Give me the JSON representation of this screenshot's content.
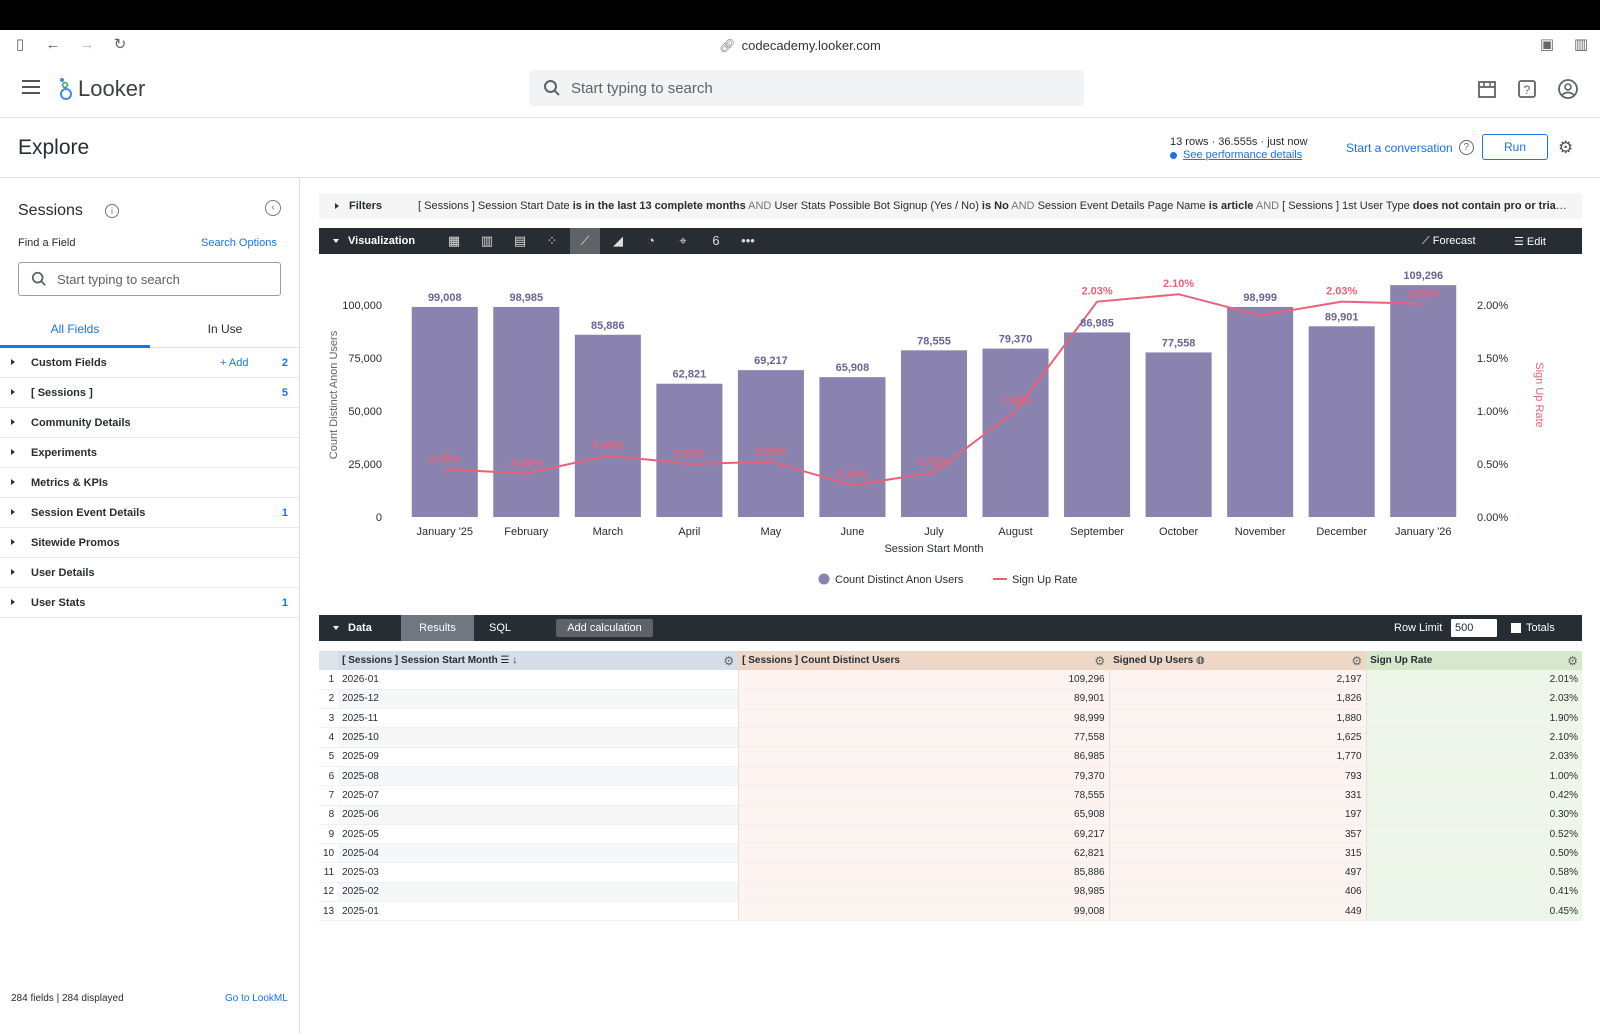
{
  "browser": {
    "url": "codecademy.looker.com"
  },
  "app": {
    "name": "Looker",
    "search_placeholder": "Start typing to search"
  },
  "explore": {
    "title": "Explore",
    "meta": "13 rows · 36.555s · just now",
    "perf_link": "See performance details",
    "conversation": "Start a conversation",
    "run": "Run"
  },
  "sidebar": {
    "title": "Sessions",
    "find": "Find a Field",
    "search_options": "Search Options",
    "search_placeholder": "Start typing to search",
    "tabs": [
      "All Fields",
      "In Use"
    ],
    "items": [
      {
        "label": "Custom Fields",
        "add": "+ Add",
        "count": "2"
      },
      {
        "label": "[ Sessions ]",
        "count": "5"
      },
      {
        "label": "Community Details",
        "count": ""
      },
      {
        "label": "Experiments",
        "count": ""
      },
      {
        "label": "Metrics & KPIs",
        "count": ""
      },
      {
        "label": "Session Event Details",
        "count": "1"
      },
      {
        "label": "Sitewide Promos",
        "count": ""
      },
      {
        "label": "User Details",
        "count": ""
      },
      {
        "label": "User Stats",
        "count": "1"
      }
    ],
    "footer": "284 fields | 284 displayed",
    "footer_link": "Go to LookML"
  },
  "filters": {
    "label": "Filters",
    "parts": [
      {
        "t": "[ Sessions ] Session Start Date ",
        "b": "is in the last 13 complete months"
      },
      {
        "and": " AND "
      },
      {
        "t": "User Stats Possible Bot Signup (Yes / No) ",
        "b": "is No"
      },
      {
        "and": " AND "
      },
      {
        "t": "Session Event Details Page Name ",
        "b": "is article"
      },
      {
        "and": " AND "
      },
      {
        "t": "[ Sessions ] 1st User Type ",
        "b": "does not contain pro or trial or e..."
      }
    ]
  },
  "visualization": {
    "label": "Visualization",
    "forecast": "Forecast",
    "edit": "Edit",
    "icons": [
      "table-icon",
      "column-chart-icon",
      "bar-chart-icon",
      "scatter-icon",
      "line-chart-icon",
      "area-chart-icon",
      "pie-chart-icon",
      "map-pin-icon",
      "single-value-icon",
      "more-icon"
    ],
    "icon_glyphs": [
      "▦",
      "▥",
      "▤",
      "⁘",
      "⟋",
      "◢",
      "◔",
      "⌖",
      "6",
      "•••"
    ]
  },
  "chart_data": {
    "type": "bar",
    "categories": [
      "January '25",
      "February",
      "March",
      "April",
      "May",
      "June",
      "July",
      "August",
      "September",
      "October",
      "November",
      "December",
      "January '26"
    ],
    "series": [
      {
        "name": "Count Distinct Anon Users",
        "type": "bar",
        "values": [
          99008,
          98985,
          85886,
          62821,
          69217,
          65908,
          78555,
          79370,
          86985,
          77558,
          98999,
          89901,
          109296
        ],
        "labels": [
          "99,008",
          "98,985",
          "85,886",
          "62,821",
          "69,217",
          "65,908",
          "78,555",
          "79,370",
          "86,985",
          "77,558",
          "98,999",
          "89,901",
          "109,296"
        ]
      },
      {
        "name": "Sign Up Rate",
        "type": "line",
        "values": [
          0.45,
          0.41,
          0.58,
          0.5,
          0.52,
          0.3,
          0.42,
          1.0,
          2.03,
          2.1,
          1.9,
          2.03,
          2.01
        ],
        "labels": [
          "0.45%",
          "0.41%",
          "0.58%",
          "0.50%",
          "0.52%",
          "0.30%",
          "0.42%",
          "1.00%",
          "2.03%",
          "2.10%",
          "",
          "2.03%",
          "2.01%"
        ]
      }
    ],
    "xlabel": "Session Start Month",
    "ylabel": "Count Distinct Anon Users",
    "y2label": "Sign Up Rate",
    "ylim": [
      0,
      115000
    ],
    "y2lim": [
      0,
      2.3
    ],
    "yticks": [
      0,
      25000,
      50000,
      75000,
      100000
    ],
    "ytick_labels": [
      "0",
      "25,000",
      "50,000",
      "75,000",
      "100,000"
    ],
    "y2ticks": [
      0,
      0.5,
      1.0,
      1.5,
      2.0
    ],
    "y2tick_labels": [
      "0.00%",
      "0.50%",
      "1.00%",
      "1.50%",
      "2.00%"
    ],
    "legend": "bottom",
    "colors": {
      "bar": "#8b83af",
      "line": "#e8627a",
      "bar_label": "#6a6398"
    }
  },
  "data_panel": {
    "label": "Data",
    "tabs": [
      "Results",
      "SQL"
    ],
    "add_calc": "Add calculation",
    "row_limit_label": "Row Limit",
    "row_limit": "500",
    "totals": "Totals"
  },
  "table": {
    "headers": [
      "[ Sessions ] Session Start Month",
      "[ Sessions ] Count Distinct Users",
      "Signed Up Users",
      "Sign Up Rate"
    ],
    "rows": [
      [
        "1",
        "2026-01",
        "109,296",
        "2,197",
        "2.01%"
      ],
      [
        "2",
        "2025-12",
        "89,901",
        "1,826",
        "2.03%"
      ],
      [
        "3",
        "2025-11",
        "98,999",
        "1,880",
        "1.90%"
      ],
      [
        "4",
        "2025-10",
        "77,558",
        "1,625",
        "2.10%"
      ],
      [
        "5",
        "2025-09",
        "86,985",
        "1,770",
        "2.03%"
      ],
      [
        "6",
        "2025-08",
        "79,370",
        "793",
        "1.00%"
      ],
      [
        "7",
        "2025-07",
        "78,555",
        "331",
        "0.42%"
      ],
      [
        "8",
        "2025-06",
        "65,908",
        "197",
        "0.30%"
      ],
      [
        "9",
        "2025-05",
        "69,217",
        "357",
        "0.52%"
      ],
      [
        "10",
        "2025-04",
        "62,821",
        "315",
        "0.50%"
      ],
      [
        "11",
        "2025-03",
        "85,886",
        "497",
        "0.58%"
      ],
      [
        "12",
        "2025-02",
        "98,985",
        "406",
        "0.41%"
      ],
      [
        "13",
        "2025-01",
        "99,008",
        "449",
        "0.45%"
      ]
    ]
  }
}
